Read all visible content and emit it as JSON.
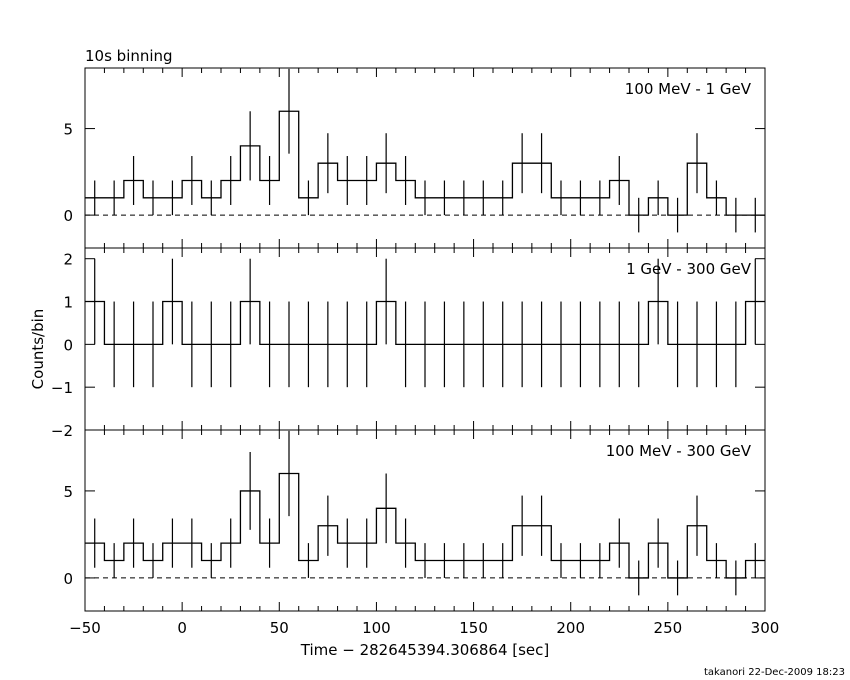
{
  "header": "10s binning",
  "footer": "takanori 22-Dec-2009 18:23",
  "chart_data": [
    {
      "type": "line",
      "title": "100 MeV - 1 GeV",
      "step": "histogram",
      "bin_width": 10,
      "x": [
        -45,
        -35,
        -25,
        -15,
        -5,
        5,
        15,
        25,
        35,
        45,
        55,
        65,
        75,
        85,
        95,
        105,
        115,
        125,
        135,
        145,
        155,
        165,
        175,
        185,
        195,
        205,
        215,
        225,
        235,
        245,
        255,
        265,
        275,
        285,
        295
      ],
      "values": [
        1,
        1,
        2,
        1,
        1,
        2,
        1,
        2,
        4,
        2,
        6,
        1,
        3,
        2,
        2,
        3,
        2,
        1,
        1,
        1,
        1,
        1,
        3,
        3,
        1,
        1,
        1,
        2,
        0,
        1,
        0,
        3,
        1,
        0,
        0
      ],
      "y_ticks": [
        0,
        5
      ],
      "ylim": [
        -1.9,
        8.5
      ],
      "zero_line": "dashed"
    },
    {
      "type": "line",
      "title": "1 GeV - 300 GeV",
      "step": "histogram",
      "bin_width": 10,
      "x": [
        -45,
        -35,
        -25,
        -15,
        -5,
        5,
        15,
        25,
        35,
        45,
        55,
        65,
        75,
        85,
        95,
        105,
        115,
        125,
        135,
        145,
        155,
        165,
        175,
        185,
        195,
        205,
        215,
        225,
        235,
        245,
        255,
        265,
        275,
        285,
        295
      ],
      "values": [
        1,
        0,
        0,
        0,
        1,
        0,
        0,
        0,
        1,
        0,
        0,
        0,
        0,
        0,
        0,
        1,
        0,
        0,
        0,
        0,
        0,
        0,
        0,
        0,
        0,
        0,
        0,
        0,
        0,
        1,
        0,
        0,
        0,
        0,
        1
      ],
      "y_ticks": [
        -2,
        -1,
        0,
        1,
        2
      ],
      "ylim": [
        -2,
        2.25
      ],
      "zero_line": "none"
    },
    {
      "type": "line",
      "title": "100 MeV - 300 GeV",
      "step": "histogram",
      "bin_width": 10,
      "x": [
        -45,
        -35,
        -25,
        -15,
        -5,
        5,
        15,
        25,
        35,
        45,
        55,
        65,
        75,
        85,
        95,
        105,
        115,
        125,
        135,
        145,
        155,
        165,
        175,
        185,
        195,
        205,
        215,
        225,
        235,
        245,
        255,
        265,
        275,
        285,
        295
      ],
      "values": [
        2,
        1,
        2,
        1,
        2,
        2,
        1,
        2,
        5,
        2,
        6,
        1,
        3,
        2,
        2,
        4,
        2,
        1,
        1,
        1,
        1,
        1,
        3,
        3,
        1,
        1,
        1,
        2,
        0,
        2,
        0,
        3,
        1,
        0,
        1
      ],
      "y_ticks": [
        0,
        5
      ],
      "ylim": [
        -1.9,
        8.5
      ],
      "zero_line": "dashed"
    }
  ],
  "axes": {
    "ylabel": "Counts/bin",
    "xlabel": "Time − 282645394.306864 [sec]",
    "xlim": [
      -50,
      300
    ],
    "x_ticks": [
      -50,
      0,
      50,
      100,
      150,
      200,
      250,
      300
    ],
    "x_minor_step": 10
  },
  "colors": {
    "line": "#000000",
    "background": "#ffffff"
  }
}
